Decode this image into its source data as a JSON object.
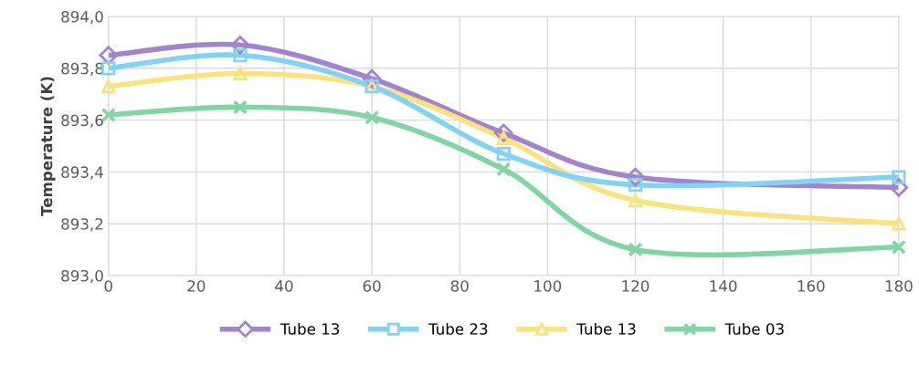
{
  "chart_data": {
    "type": "line",
    "ylabel": "Temperature (K)",
    "x": [
      0,
      30,
      60,
      90,
      120,
      180
    ],
    "series": [
      {
        "name": "Tube 13",
        "color": "#a383d0",
        "marker": "diamond",
        "values": [
          893.85,
          893.89,
          893.76,
          893.55,
          893.38,
          893.34
        ]
      },
      {
        "name": "Tube 23",
        "color": "#7fd3f7",
        "marker": "square",
        "values": [
          893.8,
          893.85,
          893.73,
          893.47,
          893.35,
          893.38
        ]
      },
      {
        "name": "Tube 13",
        "color": "#fde27a",
        "marker": "triangle",
        "values": [
          893.73,
          893.78,
          893.73,
          893.53,
          893.29,
          893.2
        ]
      },
      {
        "name": "Tube 03",
        "color": "#7ed6a2",
        "marker": "cross",
        "values": [
          893.62,
          893.65,
          893.61,
          893.41,
          893.1,
          893.11
        ]
      }
    ],
    "xlim": [
      0,
      180
    ],
    "xticks": [
      0,
      20,
      40,
      60,
      80,
      100,
      120,
      140,
      160,
      180
    ],
    "ylim": [
      893.0,
      894.0
    ],
    "yticks": [
      {
        "value": 893.0,
        "label": "893,0"
      },
      {
        "value": 893.2,
        "label": "893,2"
      },
      {
        "value": 893.4,
        "label": "893,4"
      },
      {
        "value": 893.6,
        "label": "893,6"
      },
      {
        "value": 893.8,
        "label": "893,8"
      },
      {
        "value": 894.0,
        "label": "894,0"
      }
    ],
    "grid": true,
    "legend": "bottom",
    "line_style": "solid"
  }
}
